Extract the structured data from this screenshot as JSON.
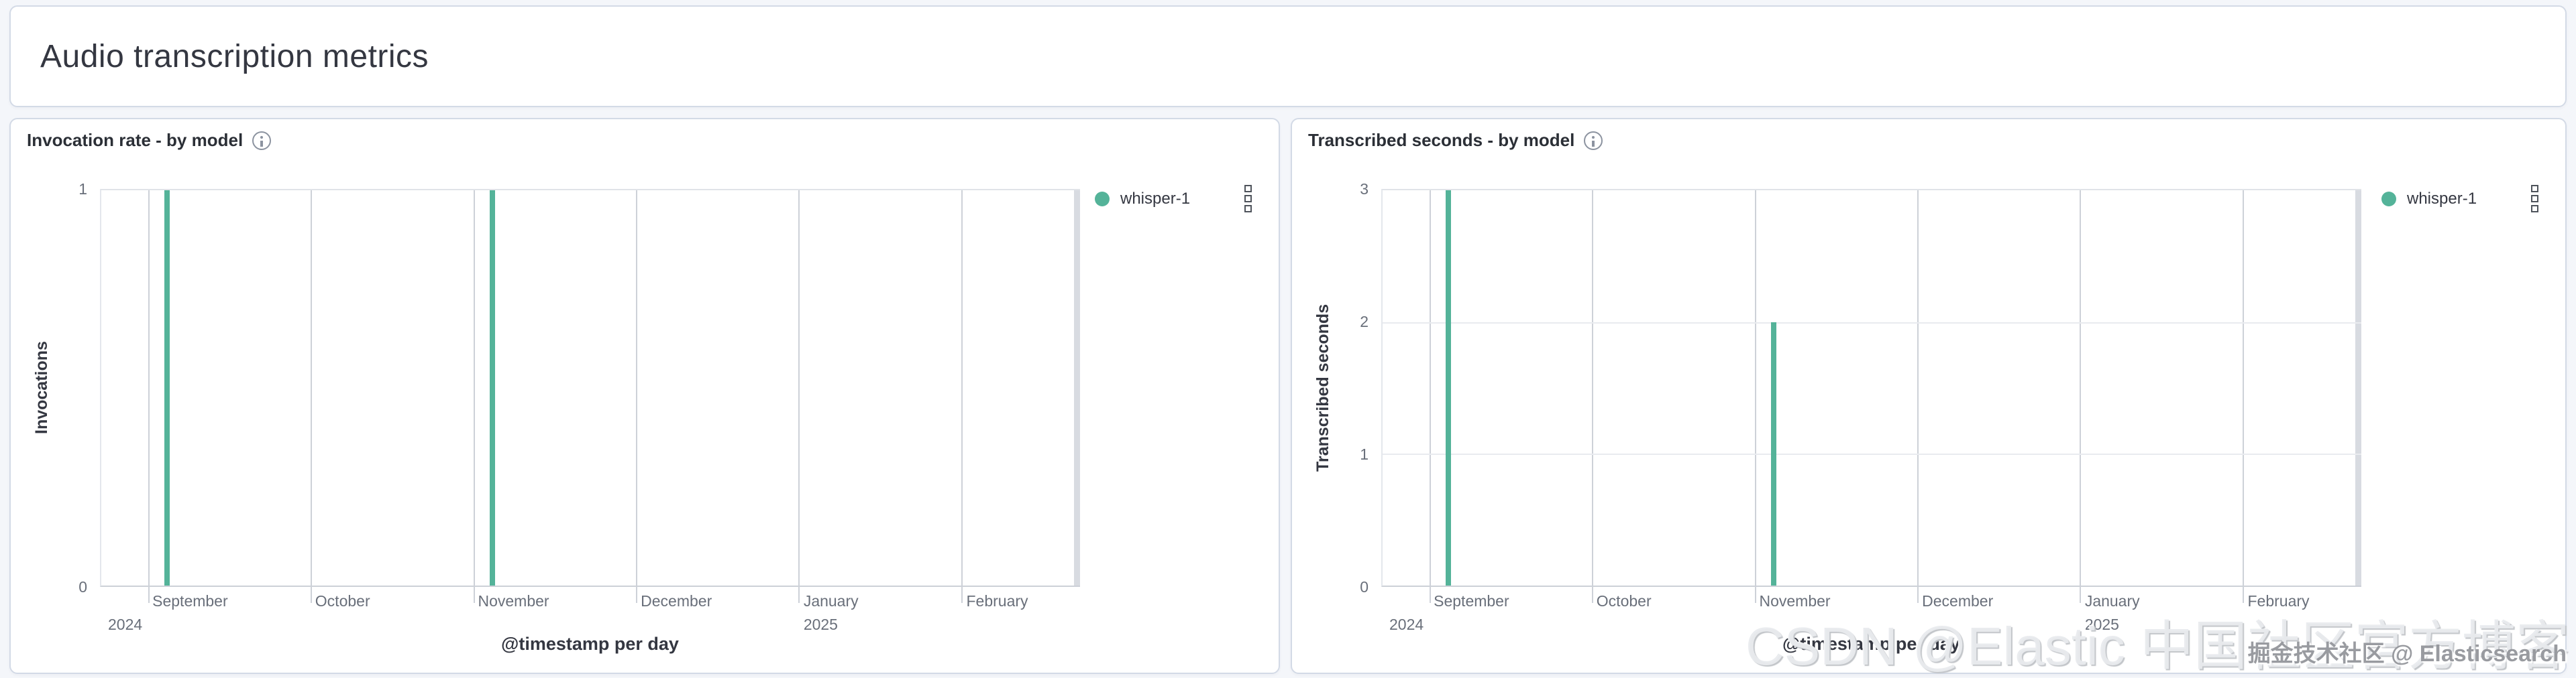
{
  "app": {
    "title": "Audio transcription metrics"
  },
  "colors": {
    "bar_green": "#54B399",
    "panel_border": "#d3dae6",
    "grid_vertical": "#cdd1d8",
    "grid_horizontal": "#e9ebef",
    "time_endcap": "#d8dbe1"
  },
  "charts": [
    {
      "title": "Invocation rate - by model",
      "legend": {
        "label": "whisper-1",
        "color": "#54B399"
      },
      "chart_data": {
        "type": "bar",
        "title": "Invocation rate - by model",
        "xlabel": "@timestamp per day",
        "ylabel": "Invocations",
        "ylim": [
          0,
          1
        ],
        "yticks": [
          0,
          1
        ],
        "x_months": [
          "September",
          "October",
          "November",
          "December",
          "January",
          "February"
        ],
        "x_years": [
          {
            "label": "2024",
            "position": "start"
          },
          {
            "label": "2025",
            "month": "January"
          }
        ],
        "series": [
          {
            "name": "whisper-1",
            "color": "#54B399",
            "points": [
              {
                "date": "2024-09-04",
                "value": 1
              },
              {
                "date": "2024-11-04",
                "value": 1
              }
            ]
          }
        ]
      }
    },
    {
      "title": "Transcribed seconds - by model",
      "legend": {
        "label": "whisper-1",
        "color": "#54B399"
      },
      "chart_data": {
        "type": "bar",
        "title": "Transcribed seconds - by model",
        "xlabel": "@timestamp per day",
        "ylabel": "Transcribed seconds",
        "ylim": [
          0,
          3
        ],
        "yticks": [
          0,
          1,
          2,
          3
        ],
        "x_months": [
          "September",
          "October",
          "November",
          "December",
          "January",
          "February"
        ],
        "x_years": [
          {
            "label": "2024",
            "position": "start"
          },
          {
            "label": "2025",
            "month": "January"
          }
        ],
        "series": [
          {
            "name": "whisper-1",
            "color": "#54B399",
            "points": [
              {
                "date": "2024-09-04",
                "value": 3
              },
              {
                "date": "2024-11-04",
                "value": 2
              }
            ]
          }
        ]
      }
    }
  ],
  "watermark": {
    "large": "CSDN @Elastic 中国社区官方博客",
    "small": "掘金技术社区 @ Elasticsearch"
  }
}
